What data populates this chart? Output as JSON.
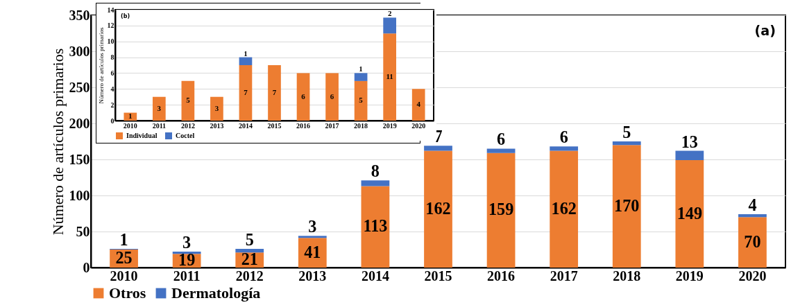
{
  "chart_data": [
    {
      "type": "bar",
      "title": "(a)",
      "ylabel": "Número de artículos primarios",
      "categories": [
        "2010",
        "2011",
        "2012",
        "2013",
        "2014",
        "2015",
        "2016",
        "2017",
        "2018",
        "2019",
        "2020"
      ],
      "stacked": true,
      "series": [
        {
          "name": "Otros",
          "color": "#ed7d31",
          "values": [
            25,
            19,
            21,
            41,
            113,
            162,
            159,
            162,
            170,
            149,
            70
          ]
        },
        {
          "name": "Dermatología",
          "color": "#4472c4",
          "values": [
            1,
            3,
            5,
            3,
            8,
            7,
            6,
            6,
            5,
            13,
            4
          ]
        }
      ],
      "ylim": [
        0,
        350
      ],
      "yticks": [
        0,
        50,
        100,
        150,
        200,
        250,
        300,
        350
      ],
      "grid": "y",
      "legend": "bottom",
      "data_labels": true
    },
    {
      "type": "bar",
      "title": "(b)",
      "ylabel": "Número de artículos primarios",
      "categories": [
        "2010",
        "2011",
        "2012",
        "2013",
        "2014",
        "2015",
        "2016",
        "2017",
        "2018",
        "2019",
        "2020"
      ],
      "stacked": true,
      "series": [
        {
          "name": "Individual",
          "color": "#ed7d31",
          "values": [
            1,
            3,
            5,
            3,
            7,
            7,
            6,
            6,
            5,
            11,
            4
          ]
        },
        {
          "name": "Coctel",
          "color": "#4472c4",
          "values": [
            null,
            null,
            null,
            null,
            1,
            null,
            null,
            null,
            1,
            2,
            null
          ]
        }
      ],
      "ylim": [
        0,
        14
      ],
      "yticks": [
        0,
        2,
        4,
        6,
        8,
        10,
        12,
        14
      ],
      "grid": "y",
      "legend": "bottom",
      "data_labels": true
    }
  ]
}
